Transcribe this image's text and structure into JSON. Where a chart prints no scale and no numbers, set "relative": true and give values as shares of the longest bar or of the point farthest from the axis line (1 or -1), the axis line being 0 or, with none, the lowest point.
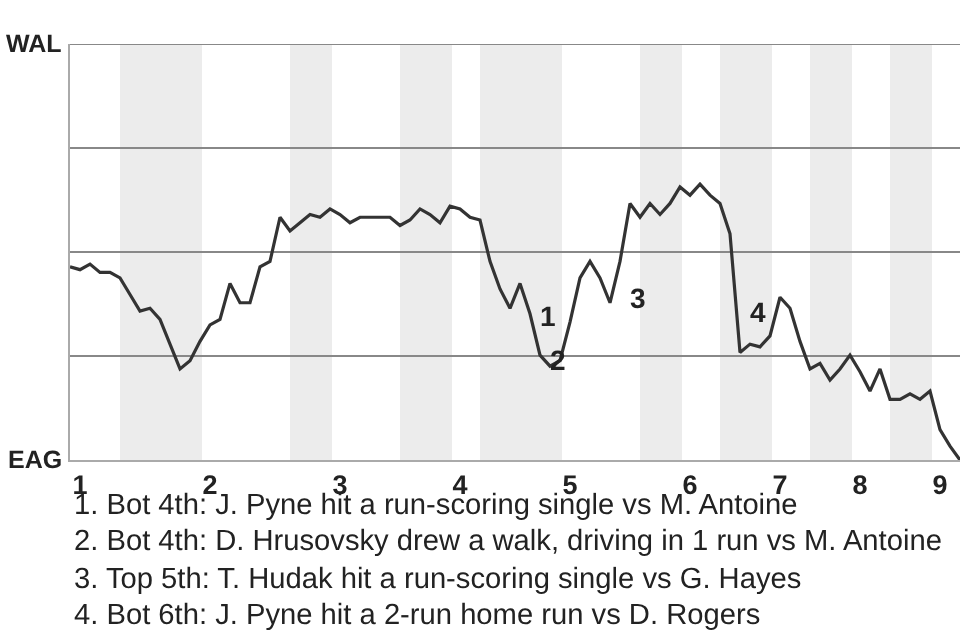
{
  "chart_data": {
    "type": "line",
    "relative": true,
    "categories": [
      null,
      "1",
      null,
      null,
      null,
      null,
      null,
      null,
      null,
      null,
      null,
      null,
      null,
      null,
      "2",
      null,
      null,
      null,
      null,
      null,
      null,
      null,
      null,
      null,
      null,
      null,
      null,
      "3",
      null,
      null,
      null,
      null,
      null,
      null,
      null,
      null,
      null,
      null,
      null,
      "4",
      null,
      null,
      null,
      null,
      null,
      null,
      null,
      null,
      null,
      null,
      "5",
      null,
      null,
      null,
      null,
      null,
      null,
      null,
      null,
      null,
      null,
      null,
      "6",
      null,
      null,
      null,
      null,
      null,
      null,
      null,
      null,
      "7",
      null,
      null,
      null,
      null,
      null,
      null,
      null,
      "8",
      null,
      null,
      null,
      null,
      null,
      null,
      null,
      "9",
      null,
      null
    ],
    "series": [
      {
        "color": "#333333",
        "values": [
          0.7,
          0.69,
          0.71,
          0.68,
          0.68,
          0.66,
          0.6,
          0.54,
          0.55,
          0.51,
          0.42,
          0.33,
          0.36,
          0.43,
          0.49,
          0.51,
          0.64,
          0.57,
          0.57,
          0.7,
          0.72,
          0.88,
          0.83,
          0.86,
          0.89,
          0.88,
          0.91,
          0.89,
          0.86,
          0.88,
          0.88,
          0.88,
          0.88,
          0.85,
          0.87,
          0.91,
          0.89,
          0.86,
          0.92,
          0.91,
          0.88,
          0.87,
          0.72,
          0.62,
          0.55,
          0.64,
          0.53,
          0.38,
          0.34,
          0.36,
          0.5,
          0.66,
          0.72,
          0.66,
          0.57,
          0.72,
          0.93,
          0.88,
          0.93,
          0.89,
          0.93,
          0.99,
          0.96,
          1.0,
          0.96,
          0.93,
          0.82,
          0.39,
          0.42,
          0.41,
          0.45,
          0.59,
          0.55,
          0.43,
          0.33,
          0.35,
          0.29,
          0.33,
          0.38,
          0.32,
          0.25,
          0.33,
          0.22,
          0.22,
          0.24,
          0.22,
          0.25,
          0.11,
          0.05,
          0.0
        ]
      }
    ],
    "ref_lines": [
      {
        "axis": "y",
        "value": 0.377,
        "color": "#888888"
      },
      {
        "axis": "y",
        "value": 0.754,
        "color": "#888888"
      },
      {
        "axis": "y",
        "value": 1.131,
        "color": "#888888"
      },
      {
        "axis": "y",
        "value": 1.508,
        "color": "#888888"
      }
    ],
    "marker": "none",
    "line_style": "solid",
    "annotations": [
      "WAL",
      "EAG",
      "1",
      "2",
      "3",
      "4",
      "1. Bot 4th: J. Pyne hit a run-scoring single vs M. Antoine",
      "2. Bot 4th: D. Hrusovsky drew a walk, driving in 1 run vs M. Antoine",
      "3. Top 5th: T. Hudak hit a run-scoring single vs G. Hayes",
      "4. Bot 6th: J. Pyne hit a 2-run home run vs D. Rogers"
    ]
  }
}
